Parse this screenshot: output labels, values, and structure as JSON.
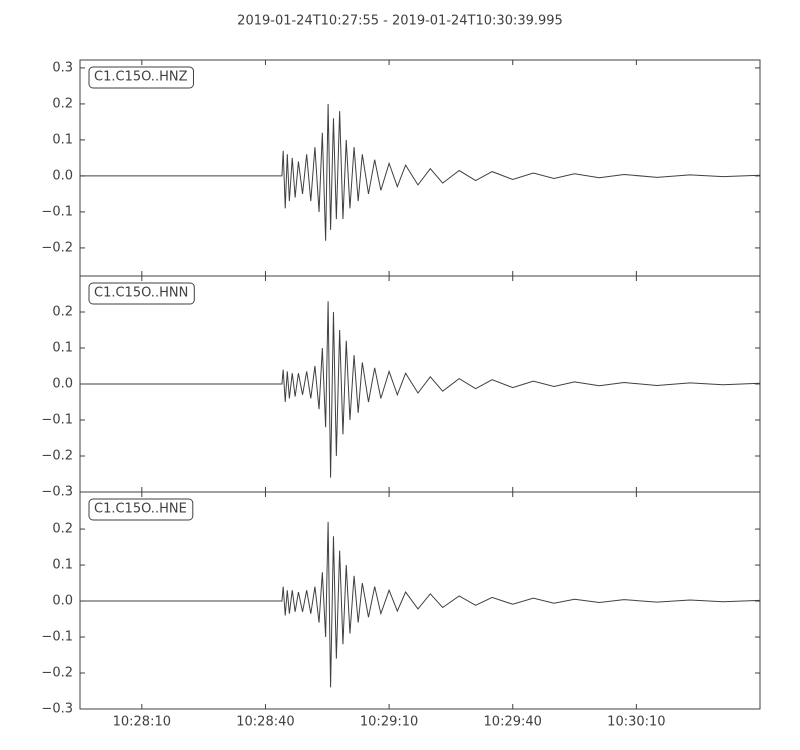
{
  "title": "2019-01-24T10:27:55  -  2019-01-24T10:30:39.995",
  "chart_data": [
    {
      "type": "line",
      "label": "C1.C15O..HNZ",
      "color": "#404040",
      "xlim": [
        0,
        164.995
      ],
      "xticks": [
        15,
        45,
        75,
        105,
        135
      ],
      "ylim": [
        -0.278,
        0.322
      ],
      "yticks": [
        {
          "value": -0.2,
          "label": "−0.2"
        },
        {
          "value": -0.1,
          "label": "−0.1"
        },
        {
          "value": 0,
          "label": "0.0"
        },
        0.1,
        0.2,
        0.3
      ],
      "x": [
        0,
        49,
        49.3,
        49.8,
        50.3,
        50.8,
        51.5,
        52.2,
        53,
        54,
        55,
        56,
        57,
        58,
        58.8,
        59.6,
        60.2,
        60.8,
        61.5,
        62.2,
        63,
        63.8,
        64.6,
        65.5,
        66.5,
        67.5,
        68.5,
        70,
        71.5,
        73,
        75,
        77,
        79,
        82,
        85,
        88,
        92,
        96,
        100,
        105,
        110,
        115,
        120,
        126,
        132,
        140,
        148,
        156,
        165
      ],
      "values": [
        0,
        0,
        0.07,
        -0.09,
        0.06,
        -0.07,
        0.05,
        -0.06,
        0.04,
        -0.05,
        0.06,
        -0.07,
        0.08,
        -0.1,
        0.12,
        -0.18,
        0.2,
        -0.15,
        0.16,
        -0.12,
        0.18,
        -0.12,
        0.1,
        -0.09,
        0.08,
        -0.07,
        0.06,
        -0.05,
        0.045,
        -0.04,
        0.035,
        -0.03,
        0.03,
        -0.025,
        0.02,
        -0.02,
        0.015,
        -0.013,
        0.012,
        -0.01,
        0.008,
        -0.007,
        0.006,
        -0.005,
        0.004,
        -0.004,
        0.003,
        -0.002,
        0.002
      ]
    },
    {
      "type": "line",
      "label": "C1.C15O..HNN",
      "color": "#404040",
      "xlim": [
        0,
        164.995
      ],
      "xticks": [
        15,
        45,
        75,
        105,
        135
      ],
      "ylim": [
        -0.3,
        0.3
      ],
      "yticks": [
        {
          "value": -0.3,
          "label": "−0.3"
        },
        {
          "value": -0.2,
          "label": "−0.2"
        },
        {
          "value": -0.1,
          "label": "−0.1"
        },
        {
          "value": 0,
          "label": "0.0"
        },
        0.1,
        0.2
      ],
      "x": [
        0,
        49,
        49.3,
        49.8,
        50.3,
        50.8,
        51.5,
        52.2,
        53,
        54,
        55,
        56,
        57,
        58,
        58.8,
        59.6,
        60.2,
        60.8,
        61.5,
        62.2,
        63,
        63.8,
        64.6,
        65.5,
        66.5,
        67.5,
        68.5,
        70,
        71.5,
        73,
        75,
        77,
        79,
        82,
        85,
        88,
        92,
        96,
        100,
        105,
        110,
        115,
        120,
        126,
        132,
        140,
        148,
        156,
        165
      ],
      "values": [
        0,
        0,
        0.04,
        -0.05,
        0.035,
        -0.04,
        0.03,
        -0.035,
        0.03,
        -0.03,
        0.035,
        -0.04,
        0.05,
        -0.07,
        0.1,
        -0.12,
        0.23,
        -0.26,
        0.2,
        -0.2,
        0.15,
        -0.14,
        0.12,
        -0.1,
        0.08,
        -0.08,
        0.06,
        -0.05,
        0.045,
        -0.04,
        0.035,
        -0.03,
        0.03,
        -0.025,
        0.02,
        -0.02,
        0.015,
        -0.013,
        0.012,
        -0.01,
        0.008,
        -0.007,
        0.006,
        -0.005,
        0.004,
        -0.004,
        0.003,
        -0.002,
        0.002
      ]
    },
    {
      "type": "line",
      "label": "C1.C15O..HNE",
      "color": "#404040",
      "xlim": [
        0,
        164.995
      ],
      "xticks": [
        {
          "value": 15,
          "label": "10:28:10"
        },
        {
          "value": 45,
          "label": "10:28:40"
        },
        {
          "value": 75,
          "label": "10:29:10"
        },
        {
          "value": 105,
          "label": "10:29:40"
        },
        {
          "value": 135,
          "label": "10:30:10"
        }
      ],
      "ylim": [
        -0.3,
        0.303
      ],
      "yticks": [
        {
          "value": -0.3,
          "label": "−0.3"
        },
        {
          "value": -0.2,
          "label": "−0.2"
        },
        {
          "value": -0.1,
          "label": "−0.1"
        },
        {
          "value": 0,
          "label": "0.0"
        },
        0.1,
        0.2
      ],
      "x": [
        0,
        49,
        49.3,
        49.8,
        50.3,
        50.8,
        51.5,
        52.2,
        53,
        54,
        55,
        56,
        57,
        58,
        58.8,
        59.6,
        60.2,
        60.8,
        61.5,
        62.2,
        63,
        63.8,
        64.6,
        65.5,
        66.5,
        67.5,
        68.5,
        70,
        71.5,
        73,
        75,
        77,
        79,
        82,
        85,
        88,
        92,
        96,
        100,
        105,
        110,
        115,
        120,
        126,
        132,
        140,
        148,
        156,
        165
      ],
      "values": [
        0,
        0,
        0.04,
        -0.04,
        0.03,
        -0.035,
        0.03,
        -0.03,
        0.025,
        -0.03,
        0.03,
        -0.035,
        0.04,
        -0.06,
        0.08,
        -0.1,
        0.22,
        -0.24,
        0.18,
        -0.16,
        0.14,
        -0.12,
        0.1,
        -0.09,
        0.07,
        -0.06,
        0.05,
        -0.045,
        0.04,
        -0.035,
        0.03,
        -0.028,
        0.025,
        -0.022,
        0.02,
        -0.018,
        0.014,
        -0.012,
        0.01,
        -0.009,
        0.008,
        -0.006,
        0.005,
        -0.004,
        0.004,
        -0.003,
        0.003,
        -0.002,
        0.002
      ]
    }
  ]
}
